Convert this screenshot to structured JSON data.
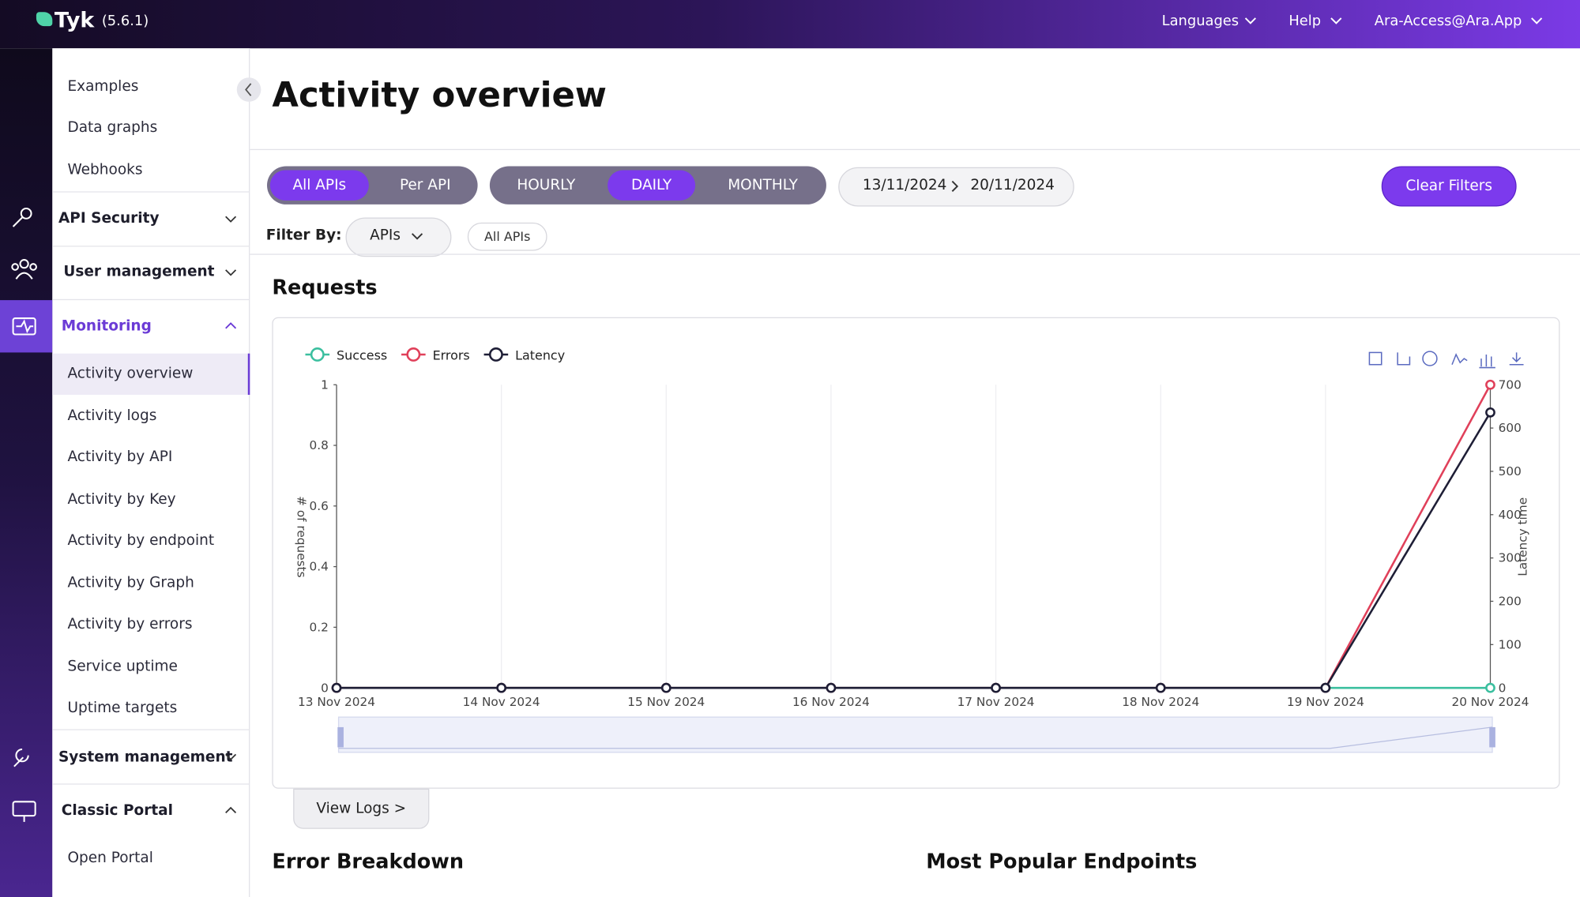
{
  "header": {
    "brand": "Tyk",
    "version": "(5.6.1)",
    "menu": [
      "Languages",
      "Help",
      "Ara-Access@Ara.App"
    ]
  },
  "sidebar": {
    "top_links": [
      "Examples",
      "Data graphs",
      "Webhooks"
    ],
    "api_security": "API Security",
    "user_management": "User management",
    "monitoring": {
      "title": "Monitoring",
      "links": [
        "Activity overview",
        "Activity logs",
        "Activity by API",
        "Activity by Key",
        "Activity by endpoint",
        "Activity by Graph",
        "Activity by errors",
        "Service uptime",
        "Uptime targets"
      ]
    },
    "system_management": "System management",
    "classic_portal": {
      "title": "Classic Portal",
      "links": [
        "Open Portal"
      ]
    }
  },
  "page": {
    "title": "Activity overview",
    "api_scope": [
      "All APIs",
      "Per API"
    ],
    "interval": [
      "HOURLY",
      "DAILY",
      "MONTHLY"
    ],
    "date_from": "13/11/2024",
    "date_to": "20/11/2024",
    "clear_filters": "Clear Filters",
    "filter_by": "Filter By:",
    "filter_dropdown": "APIs",
    "filter_value": "All APIs",
    "requests_title": "Requests",
    "view_logs": "View Logs >",
    "error_breakdown": "Error Breakdown",
    "popular_endpoints": "Most Popular Endpoints"
  },
  "chart_data": {
    "type": "line",
    "y_label": "# of requests",
    "y2_label": "Latency time",
    "categories": [
      "13 Nov 2024",
      "14 Nov 2024",
      "15 Nov 2024",
      "16 Nov 2024",
      "17 Nov 2024",
      "18 Nov 2024",
      "19 Nov 2024",
      "20 Nov 2024"
    ],
    "ylim": [
      0,
      1
    ],
    "yticks": [
      0,
      0.2,
      0.4,
      0.6,
      0.8,
      1
    ],
    "y2lim": [
      0,
      700
    ],
    "y2ticks": [
      0,
      100,
      200,
      300,
      400,
      500,
      600,
      700
    ],
    "series": [
      {
        "name": "Success",
        "color": "#3bbf9f",
        "values": [
          0,
          0,
          0,
          0,
          0,
          0,
          0,
          0
        ]
      },
      {
        "name": "Errors",
        "color": "#e0405a",
        "axis": "y2",
        "values": [
          0,
          0,
          0,
          0,
          0,
          0,
          0,
          700
        ]
      },
      {
        "name": "Latency",
        "color": "#1e1e36",
        "axis": "y2",
        "values": [
          0,
          0,
          0,
          0,
          0,
          0,
          0,
          636
        ]
      }
    ]
  }
}
